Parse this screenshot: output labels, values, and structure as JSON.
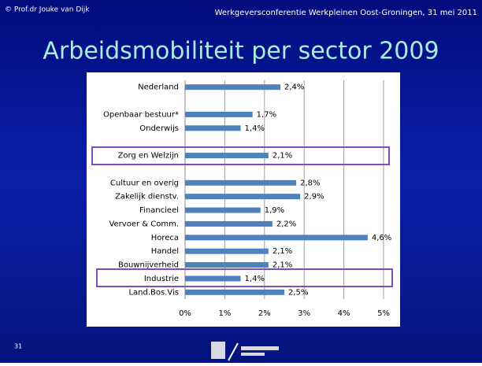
{
  "header": {
    "left": "© Prof.dr Jouke van Dijk",
    "right": "Werkgeversconferentie Werkpleinen Oost-Groningen, 31 mei 2011"
  },
  "page_number": "31",
  "chart_data": {
    "type": "hbar",
    "title": "Arbeidsmobiliteit per sector 2009",
    "categories": [
      "Nederland",
      null,
      "Openbaar bestuur*",
      "Onderwijs",
      null,
      "Zorg en Welzijn",
      null,
      "Cultuur en overig",
      "Zakelijk dienstv.",
      "Financieel",
      "Vervoer & Comm.",
      "Horeca",
      "Handel",
      "Bouwnijverheid",
      "Industrie",
      "Land.Bos.Vis"
    ],
    "values": [
      2.4,
      null,
      1.7,
      1.4,
      null,
      2.1,
      null,
      2.8,
      2.9,
      1.9,
      2.2,
      4.6,
      2.1,
      2.1,
      1.4,
      2.5
    ],
    "value_labels": [
      "2,4%",
      null,
      "1,7%",
      "1,4%",
      null,
      "2,1%",
      null,
      "2,8%",
      "2,9%",
      "1,9%",
      "2,2%",
      "4,6%",
      "2,1%",
      "2,1%",
      "1,4%",
      "2,5%"
    ],
    "color": "#4f81bd",
    "xlim": [
      0,
      5
    ],
    "xticks": [
      {
        "value": 0,
        "label": "0%"
      },
      {
        "value": 1,
        "label": "1%"
      },
      {
        "value": 2,
        "label": "2%"
      },
      {
        "value": 3,
        "label": "3%"
      },
      {
        "value": 4,
        "label": "4%"
      },
      {
        "value": 5,
        "label": "5%"
      }
    ],
    "grid": true
  }
}
